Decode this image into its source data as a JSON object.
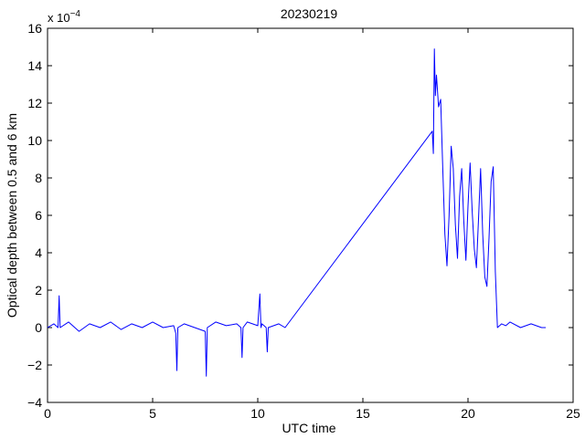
{
  "chart_data": {
    "type": "line",
    "title": "20230219",
    "xlabel": "UTC time",
    "ylabel": "Optical depth between 0.5 and 6 km",
    "exponent_label": "x 10",
    "exponent_power": "−4",
    "xlim": [
      0,
      25
    ],
    "ylim": [
      -4,
      16
    ],
    "xticks": [
      0,
      5,
      10,
      15,
      20,
      25
    ],
    "yticks": [
      -4,
      -2,
      0,
      2,
      4,
      6,
      8,
      10,
      12,
      14,
      16
    ],
    "grid": false,
    "line_color": "#0000ff",
    "series": [
      {
        "x": [
          0.0,
          0.3,
          0.5,
          0.55,
          0.6,
          1.0,
          1.5,
          2.0,
          2.5,
          3.0,
          3.5,
          4.0,
          4.5,
          5.0,
          5.5,
          6.0,
          6.1,
          6.15,
          6.2,
          6.5,
          7.0,
          7.5,
          7.55,
          7.6,
          8.0,
          8.5,
          9.0,
          9.2,
          9.25,
          9.3,
          9.5,
          10.0,
          10.1,
          10.15,
          10.2,
          10.4,
          10.45,
          10.5,
          11.0,
          11.3,
          18.3,
          18.35,
          18.4,
          18.45,
          18.5,
          18.6,
          18.7,
          18.8,
          18.9,
          19.0,
          19.1,
          19.2,
          19.3,
          19.4,
          19.5,
          19.6,
          19.7,
          19.8,
          19.9,
          20.0,
          20.1,
          20.2,
          20.3,
          20.4,
          20.5,
          20.6,
          20.7,
          20.8,
          20.9,
          21.0,
          21.1,
          21.2,
          21.3,
          21.4,
          21.6,
          21.8,
          22.0,
          22.5,
          23.0,
          23.5,
          23.7
        ],
        "y": [
          0.0,
          0.2,
          0.0,
          1.7,
          0.0,
          0.3,
          -0.2,
          0.2,
          0.0,
          0.3,
          -0.1,
          0.2,
          0.0,
          0.3,
          0.0,
          0.1,
          -0.3,
          -2.3,
          0.0,
          0.2,
          0.0,
          -0.2,
          -2.6,
          0.0,
          0.3,
          0.1,
          0.2,
          0.0,
          -1.6,
          0.0,
          0.3,
          0.1,
          1.8,
          0.0,
          0.2,
          0.0,
          -1.3,
          0.0,
          0.2,
          0.0,
          10.5,
          9.3,
          14.9,
          12.4,
          13.5,
          11.8,
          12.2,
          8.5,
          5.0,
          3.3,
          6.0,
          9.7,
          8.5,
          5.5,
          3.7,
          7.0,
          8.5,
          5.7,
          3.6,
          6.5,
          8.8,
          6.2,
          4.2,
          3.2,
          5.8,
          8.5,
          5.0,
          2.7,
          2.2,
          4.8,
          7.8,
          8.6,
          3.0,
          0.0,
          0.2,
          0.1,
          0.3,
          0.0,
          0.2,
          0.0,
          0.0
        ]
      }
    ]
  }
}
